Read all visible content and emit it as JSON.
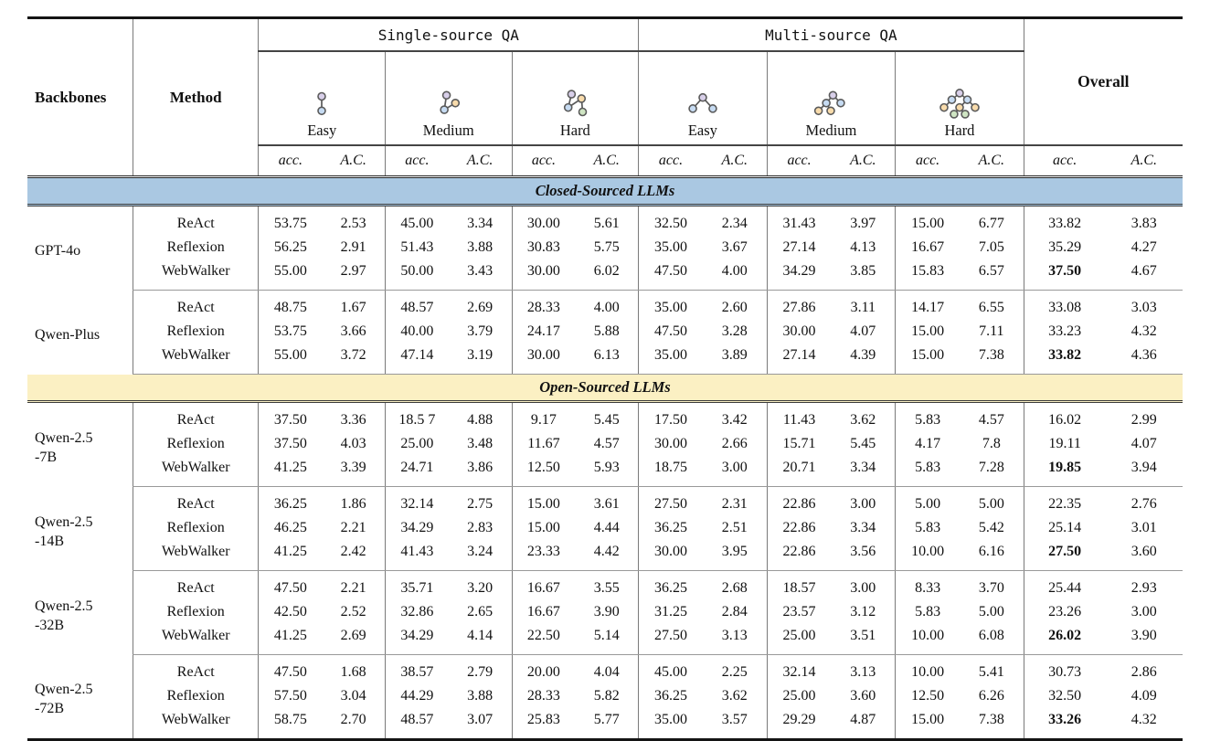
{
  "table": {
    "headers": {
      "backbones": "Backbones",
      "method": "Method",
      "overall": "Overall",
      "acc": "acc.",
      "ac": "A.C.",
      "groups": [
        {
          "label": "Single-source QA",
          "levels": [
            {
              "name": "Easy",
              "icon": "single-easy"
            },
            {
              "name": "Medium",
              "icon": "single-medium"
            },
            {
              "name": "Hard",
              "icon": "single-hard"
            }
          ]
        },
        {
          "label": "Multi-source QA",
          "levels": [
            {
              "name": "Easy",
              "icon": "multi-easy"
            },
            {
              "name": "Medium",
              "icon": "multi-medium"
            },
            {
              "name": "Hard",
              "icon": "multi-hard"
            }
          ]
        }
      ]
    },
    "colors": {
      "closed_band": "#aac8e2",
      "open_band": "#fbf0c3",
      "node_purple": "#d8cfe9",
      "node_blue": "#c6dbf2",
      "node_orange": "#f8dbab",
      "node_green": "#cfe5c3"
    },
    "sections": [
      {
        "title": "Closed-Sourced LLMs",
        "band": "closed",
        "groups": [
          {
            "backbone": "GPT-4o",
            "rows": [
              {
                "method": "ReAct",
                "values": [
                  "53.75",
                  "2.53",
                  "45.00",
                  "3.34",
                  "30.00",
                  "5.61",
                  "32.50",
                  "2.34",
                  "31.43",
                  "3.97",
                  "15.00",
                  "6.77",
                  "33.82",
                  "3.83"
                ],
                "bold": []
              },
              {
                "method": "Reflexion",
                "values": [
                  "56.25",
                  "2.91",
                  "51.43",
                  "3.88",
                  "30.83",
                  "5.75",
                  "35.00",
                  "3.67",
                  "27.14",
                  "4.13",
                  "16.67",
                  "7.05",
                  "35.29",
                  "4.27"
                ],
                "bold": []
              },
              {
                "method": "WebWalker",
                "values": [
                  "55.00",
                  "2.97",
                  "50.00",
                  "3.43",
                  "30.00",
                  "6.02",
                  "47.50",
                  "4.00",
                  "34.29",
                  "3.85",
                  "15.83",
                  "6.57",
                  "37.50",
                  "4.67"
                ],
                "bold": [
                  12
                ]
              }
            ]
          },
          {
            "backbone": "Qwen-Plus",
            "rows": [
              {
                "method": "ReAct",
                "values": [
                  "48.75",
                  "1.67",
                  "48.57",
                  "2.69",
                  "28.33",
                  "4.00",
                  "35.00",
                  "2.60",
                  "27.86",
                  "3.11",
                  "14.17",
                  "6.55",
                  "33.08",
                  "3.03"
                ],
                "bold": []
              },
              {
                "method": "Reflexion",
                "values": [
                  "53.75",
                  "3.66",
                  "40.00",
                  "3.79",
                  "24.17",
                  "5.88",
                  "47.50",
                  "3.28",
                  "30.00",
                  "4.07",
                  "15.00",
                  "7.11",
                  "33.23",
                  "4.32"
                ],
                "bold": []
              },
              {
                "method": "WebWalker",
                "values": [
                  "55.00",
                  "3.72",
                  "47.14",
                  "3.19",
                  "30.00",
                  "6.13",
                  "35.00",
                  "3.89",
                  "27.14",
                  "4.39",
                  "15.00",
                  "7.38",
                  "33.82",
                  "4.36"
                ],
                "bold": [
                  12
                ]
              }
            ]
          }
        ]
      },
      {
        "title": "Open-Sourced LLMs",
        "band": "open",
        "groups": [
          {
            "backbone": "Qwen-2.5\n-7B",
            "rows": [
              {
                "method": "ReAct",
                "values": [
                  "37.50",
                  "3.36",
                  "18.5 7",
                  "4.88",
                  "9.17",
                  "5.45",
                  "17.50",
                  "3.42",
                  "11.43",
                  "3.62",
                  "5.83",
                  "4.57",
                  "16.02",
                  "2.99"
                ],
                "bold": []
              },
              {
                "method": "Reflexion",
                "values": [
                  "37.50",
                  "4.03",
                  "25.00",
                  "3.48",
                  "11.67",
                  "4.57",
                  "30.00",
                  "2.66",
                  "15.71",
                  "5.45",
                  "4.17",
                  "7.8",
                  "19.11",
                  "4.07"
                ],
                "bold": []
              },
              {
                "method": "WebWalker",
                "values": [
                  "41.25",
                  "3.39",
                  "24.71",
                  "3.86",
                  "12.50",
                  "5.93",
                  "18.75",
                  "3.00",
                  "20.71",
                  "3.34",
                  "5.83",
                  "7.28",
                  "19.85",
                  "3.94"
                ],
                "bold": [
                  12
                ]
              }
            ]
          },
          {
            "backbone": "Qwen-2.5\n-14B",
            "rows": [
              {
                "method": "ReAct",
                "values": [
                  "36.25",
                  "1.86",
                  "32.14",
                  "2.75",
                  "15.00",
                  "3.61",
                  "27.50",
                  "2.31",
                  "22.86",
                  "3.00",
                  "5.00",
                  "5.00",
                  "22.35",
                  "2.76"
                ],
                "bold": []
              },
              {
                "method": "Reflexion",
                "values": [
                  "46.25",
                  "2.21",
                  "34.29",
                  "2.83",
                  "15.00",
                  "4.44",
                  "36.25",
                  "2.51",
                  "22.86",
                  "3.34",
                  "5.83",
                  "5.42",
                  "25.14",
                  "3.01"
                ],
                "bold": []
              },
              {
                "method": "WebWalker",
                "values": [
                  "41.25",
                  "2.42",
                  "41.43",
                  "3.24",
                  "23.33",
                  "4.42",
                  "30.00",
                  "3.95",
                  "22.86",
                  "3.56",
                  "10.00",
                  "6.16",
                  "27.50",
                  "3.60"
                ],
                "bold": [
                  12
                ]
              }
            ]
          },
          {
            "backbone": "Qwen-2.5\n-32B",
            "rows": [
              {
                "method": "ReAct",
                "values": [
                  "47.50",
                  "2.21",
                  "35.71",
                  "3.20",
                  "16.67",
                  "3.55",
                  "36.25",
                  "2.68",
                  "18.57",
                  "3.00",
                  "8.33",
                  "3.70",
                  "25.44",
                  "2.93"
                ],
                "bold": []
              },
              {
                "method": "Reflexion",
                "values": [
                  "42.50",
                  "2.52",
                  "32.86",
                  "2.65",
                  "16.67",
                  "3.90",
                  "31.25",
                  "2.84",
                  "23.57",
                  "3.12",
                  "5.83",
                  "5.00",
                  "23.26",
                  "3.00"
                ],
                "bold": []
              },
              {
                "method": "WebWalker",
                "values": [
                  "41.25",
                  "2.69",
                  "34.29",
                  "4.14",
                  "22.50",
                  "5.14",
                  "27.50",
                  "3.13",
                  "25.00",
                  "3.51",
                  "10.00",
                  "6.08",
                  "26.02",
                  "3.90"
                ],
                "bold": [
                  12
                ]
              }
            ]
          },
          {
            "backbone": "Qwen-2.5\n-72B",
            "rows": [
              {
                "method": "ReAct",
                "values": [
                  "47.50",
                  "1.68",
                  "38.57",
                  "2.79",
                  "20.00",
                  "4.04",
                  "45.00",
                  "2.25",
                  "32.14",
                  "3.13",
                  "10.00",
                  "5.41",
                  "30.73",
                  "2.86"
                ],
                "bold": []
              },
              {
                "method": "Reflexion",
                "values": [
                  "57.50",
                  "3.04",
                  "44.29",
                  "3.88",
                  "28.33",
                  "5.82",
                  "36.25",
                  "3.62",
                  "25.00",
                  "3.60",
                  "12.50",
                  "6.26",
                  "32.50",
                  "4.09"
                ],
                "bold": []
              },
              {
                "method": "WebWalker",
                "values": [
                  "58.75",
                  "2.70",
                  "48.57",
                  "3.07",
                  "25.83",
                  "5.77",
                  "35.00",
                  "3.57",
                  "29.29",
                  "4.87",
                  "15.00",
                  "7.38",
                  "33.26",
                  "4.32"
                ],
                "bold": [
                  12
                ]
              }
            ]
          }
        ]
      }
    ]
  }
}
